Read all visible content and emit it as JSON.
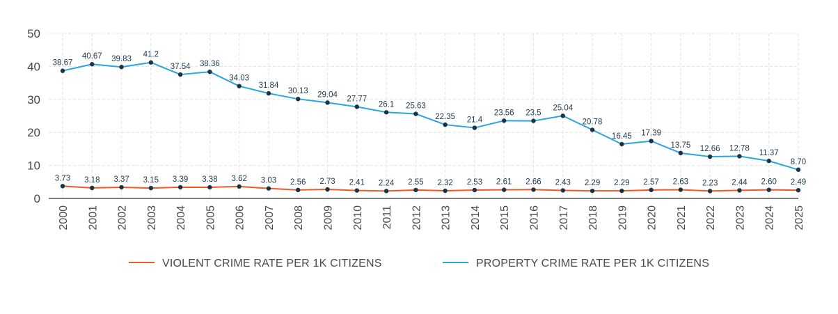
{
  "chart_data": {
    "type": "line",
    "categories": [
      "2000",
      "2001",
      "2002",
      "2003",
      "2004",
      "2005",
      "2006",
      "2007",
      "2008",
      "2009",
      "2010",
      "2011",
      "2012",
      "2013",
      "2014",
      "2015",
      "2016",
      "2017",
      "2018",
      "2019",
      "2020",
      "2021",
      "2022",
      "2023",
      "2024",
      "2025"
    ],
    "ylim": [
      0,
      50
    ],
    "yticks": [
      "0",
      "10",
      "20",
      "30",
      "40",
      "50"
    ],
    "grid": true,
    "legend_position": "bottom",
    "series": [
      {
        "name": "VIOLENT CRIME RATE PER 1K CITIZENS",
        "color": "#f05a28",
        "values": [
          3.73,
          3.18,
          3.37,
          3.15,
          3.39,
          3.38,
          3.62,
          3.03,
          2.56,
          2.73,
          2.41,
          2.24,
          2.55,
          2.32,
          2.53,
          2.61,
          2.66,
          2.43,
          2.29,
          2.29,
          2.57,
          2.63,
          2.23,
          2.44,
          2.6,
          2.49
        ],
        "labels": [
          "3.73",
          "3.18",
          "3.37",
          "3.15",
          "3.39",
          "3.38",
          "3.62",
          "3.03",
          "2.56",
          "2.73",
          "2.41",
          "2.24",
          "2.55",
          "2.32",
          "2.53",
          "2.61",
          "2.66",
          "2.43",
          "2.29",
          "2.29",
          "2.57",
          "2.63",
          "2.23",
          "2.44",
          "2.60",
          "2.49"
        ]
      },
      {
        "name": "PROPERTY CRIME RATE PER 1K CITIZENS",
        "color": "#29a6df",
        "values": [
          38.67,
          40.67,
          39.83,
          41.2,
          37.54,
          38.36,
          34.03,
          31.84,
          30.13,
          29.04,
          27.77,
          26.1,
          25.63,
          22.35,
          21.4,
          23.56,
          23.5,
          25.04,
          20.78,
          16.45,
          17.39,
          13.75,
          12.66,
          12.78,
          11.37,
          8.7
        ],
        "labels": [
          "38.67",
          "40.67",
          "39.83",
          "41.2",
          "37.54",
          "38.36",
          "34.03",
          "31.84",
          "30.13",
          "29.04",
          "27.77",
          "26.1",
          "25.63",
          "22.35",
          "21.4",
          "23.56",
          "23.5",
          "25.04",
          "20.78",
          "16.45",
          "17.39",
          "13.75",
          "12.66",
          "12.78",
          "11.37",
          "8.70"
        ]
      }
    ],
    "colors": {
      "marker": "#1c3344",
      "grid": "#e2e2e2",
      "axis": "#555555",
      "text": "#4a4a4a"
    }
  }
}
